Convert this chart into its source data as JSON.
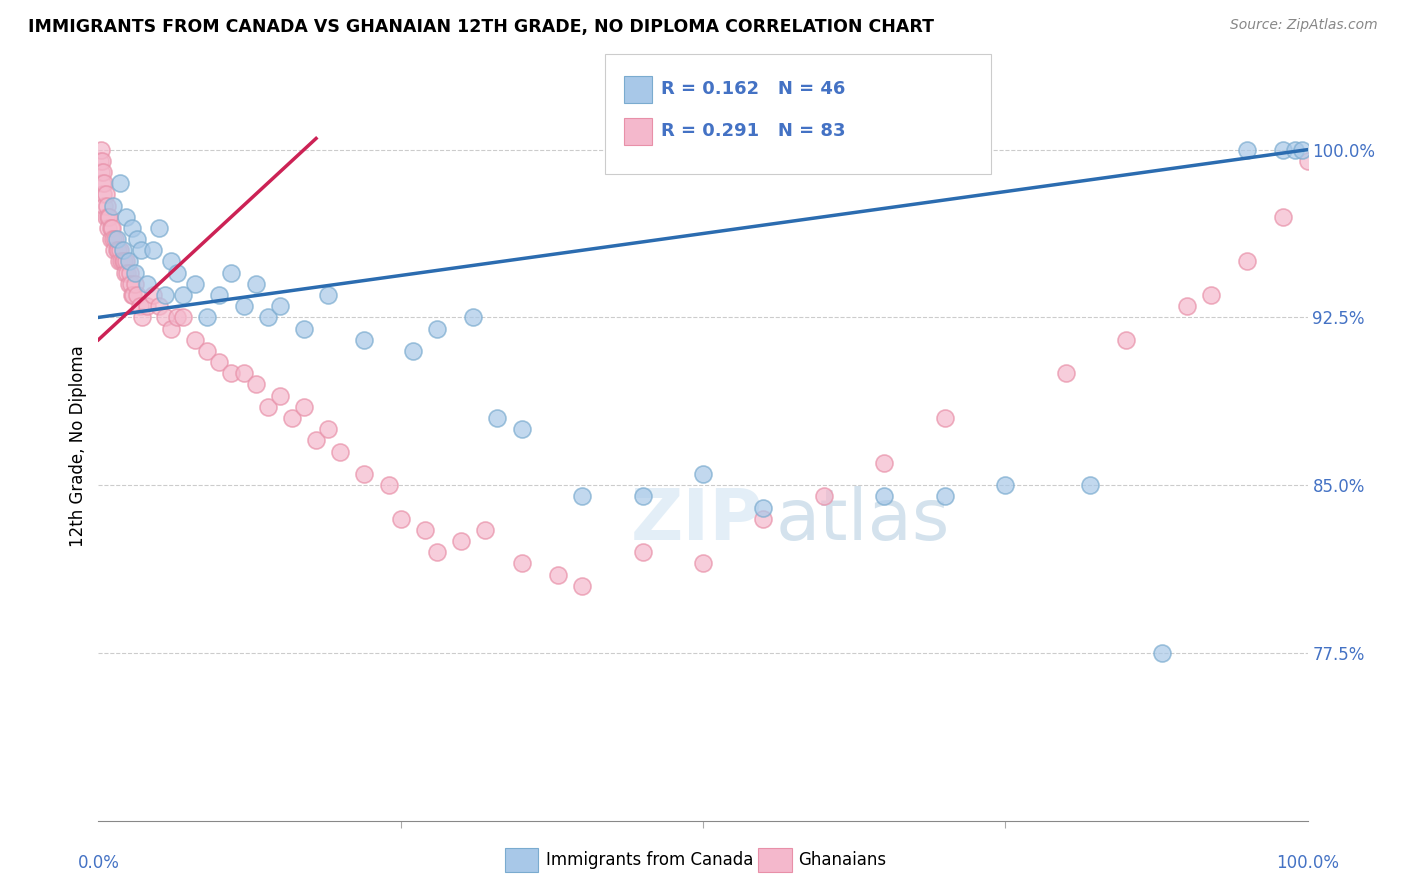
{
  "title": "IMMIGRANTS FROM CANADA VS GHANAIAN 12TH GRADE, NO DIPLOMA CORRELATION CHART",
  "source": "Source: ZipAtlas.com",
  "ylabel": "12th Grade, No Diploma",
  "ytick_labels": [
    "77.5%",
    "85.0%",
    "92.5%",
    "100.0%"
  ],
  "ytick_values": [
    77.5,
    85.0,
    92.5,
    100.0
  ],
  "xmin": 0.0,
  "xmax": 100.0,
  "ymin": 70.0,
  "ymax": 103.5,
  "legend_blue_label": "R = 0.162   N = 46",
  "legend_pink_label": "R = 0.291   N = 83",
  "legend_bottom_blue": "Immigrants from Canada",
  "legend_bottom_pink": "Ghanaians",
  "blue_color": "#a8c8e8",
  "pink_color": "#f4b8cc",
  "blue_edge_color": "#7aabcf",
  "pink_edge_color": "#e890a8",
  "blue_line_color": "#2b6cb0",
  "pink_line_color": "#cc2255",
  "blue_x": [
    1.2,
    1.5,
    1.8,
    2.0,
    2.3,
    2.5,
    2.8,
    3.0,
    3.2,
    3.5,
    4.0,
    4.5,
    5.0,
    5.5,
    6.0,
    6.5,
    7.0,
    8.0,
    9.0,
    10.0,
    11.0,
    12.0,
    13.0,
    14.0,
    15.0,
    17.0,
    19.0,
    22.0,
    26.0,
    31.0,
    35.0,
    40.0,
    28.0,
    33.0,
    45.0,
    50.0,
    55.0,
    65.0,
    70.0,
    75.0,
    82.0,
    88.0,
    95.0,
    98.0,
    99.0,
    99.5
  ],
  "blue_y": [
    97.5,
    96.0,
    98.5,
    95.5,
    97.0,
    95.0,
    96.5,
    94.5,
    96.0,
    95.5,
    94.0,
    95.5,
    96.5,
    93.5,
    95.0,
    94.5,
    93.5,
    94.0,
    92.5,
    93.5,
    94.5,
    93.0,
    94.0,
    92.5,
    93.0,
    92.0,
    93.5,
    91.5,
    91.0,
    92.5,
    87.5,
    84.5,
    92.0,
    88.0,
    84.5,
    85.5,
    84.0,
    84.5,
    84.5,
    85.0,
    85.0,
    77.5,
    100.0,
    100.0,
    100.0,
    100.0
  ],
  "pink_x": [
    0.1,
    0.2,
    0.2,
    0.3,
    0.3,
    0.4,
    0.4,
    0.5,
    0.5,
    0.6,
    0.6,
    0.7,
    0.8,
    0.8,
    0.9,
    1.0,
    1.0,
    1.1,
    1.2,
    1.3,
    1.4,
    1.5,
    1.6,
    1.7,
    1.8,
    1.9,
    2.0,
    2.1,
    2.2,
    2.3,
    2.4,
    2.5,
    2.6,
    2.7,
    2.8,
    2.9,
    3.0,
    3.2,
    3.4,
    3.6,
    4.0,
    4.5,
    5.0,
    5.5,
    6.0,
    6.5,
    7.0,
    8.0,
    9.0,
    10.0,
    11.0,
    12.0,
    13.0,
    14.0,
    15.0,
    16.0,
    17.0,
    18.0,
    19.0,
    20.0,
    22.0,
    24.0,
    25.0,
    27.0,
    28.0,
    30.0,
    32.0,
    35.0,
    38.0,
    40.0,
    45.0,
    50.0,
    55.0,
    60.0,
    65.0,
    70.0,
    80.0,
    85.0,
    90.0,
    92.0,
    95.0,
    98.0,
    100.0
  ],
  "pink_y": [
    99.5,
    100.0,
    99.0,
    99.5,
    98.5,
    99.0,
    98.0,
    98.5,
    97.5,
    98.0,
    97.0,
    97.5,
    97.0,
    96.5,
    97.0,
    96.5,
    96.0,
    96.5,
    96.0,
    95.5,
    96.0,
    95.5,
    95.5,
    95.0,
    95.5,
    95.0,
    95.0,
    95.0,
    94.5,
    95.0,
    94.5,
    94.0,
    94.5,
    94.0,
    93.5,
    93.5,
    94.0,
    93.5,
    93.0,
    92.5,
    93.0,
    93.5,
    93.0,
    92.5,
    92.0,
    92.5,
    92.5,
    91.5,
    91.0,
    90.5,
    90.0,
    90.0,
    89.5,
    88.5,
    89.0,
    88.0,
    88.5,
    87.0,
    87.5,
    86.5,
    85.5,
    85.0,
    83.5,
    83.0,
    82.0,
    82.5,
    83.0,
    81.5,
    81.0,
    80.5,
    82.0,
    81.5,
    83.5,
    84.5,
    86.0,
    88.0,
    90.0,
    91.5,
    93.0,
    93.5,
    95.0,
    97.0,
    99.5
  ],
  "blue_trendline_x0": 0.0,
  "blue_trendline_y0": 92.5,
  "blue_trendline_x1": 100.0,
  "blue_trendline_y1": 100.0,
  "pink_trendline_x0": 0.0,
  "pink_trendline_y0": 91.5,
  "pink_trendline_x1": 18.0,
  "pink_trendline_y1": 100.5
}
